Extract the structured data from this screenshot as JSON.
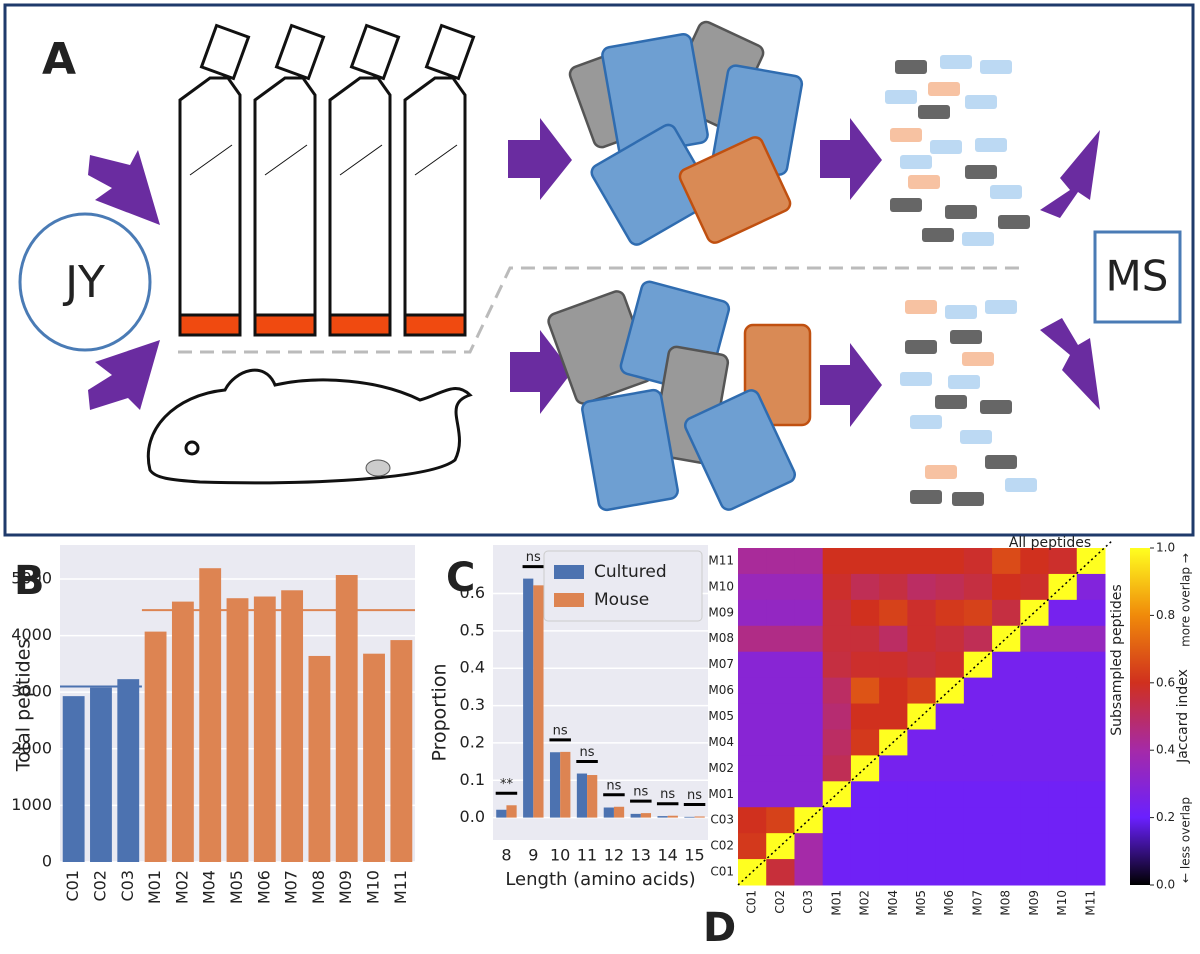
{
  "panel_labels": [
    "A",
    "B",
    "C",
    "D"
  ],
  "diagram": {
    "left_label": "JY",
    "right_label": "MS"
  },
  "chart_data": [
    {
      "type": "bar",
      "ylabel": "Total peptides",
      "categories": [
        "C01",
        "C02",
        "C03",
        "M01",
        "M02",
        "M04",
        "M05",
        "M06",
        "M07",
        "M08",
        "M09",
        "M10",
        "M11"
      ],
      "values": [
        2930,
        3080,
        3230,
        4070,
        4600,
        5190,
        4660,
        4690,
        4800,
        3640,
        5070,
        3680,
        3920
      ],
      "colors": [
        "#4c72b0",
        "#4c72b0",
        "#4c72b0",
        "#dd8452",
        "#dd8452",
        "#dd8452",
        "#dd8452",
        "#dd8452",
        "#dd8452",
        "#dd8452",
        "#dd8452",
        "#dd8452",
        "#dd8452"
      ],
      "mean_lines": [
        {
          "value": 3100,
          "color": "#4c72b0"
        },
        {
          "value": 4450,
          "color": "#dd8452"
        }
      ],
      "ylim": [
        0,
        5600
      ],
      "yticks": [
        0,
        1000,
        2000,
        3000,
        4000,
        5000
      ],
      "grid": true
    },
    {
      "type": "grouped_bar",
      "xlabel": "Length (amino acids)",
      "ylabel": "Proportion",
      "categories": [
        "8",
        "9",
        "10",
        "11",
        "12",
        "13",
        "14",
        "15"
      ],
      "series": [
        {
          "name": "Cultured",
          "color": "#4c72b0",
          "values": [
            0.021,
            0.64,
            0.175,
            0.118,
            0.027,
            0.01,
            0.004,
            0.002
          ]
        },
        {
          "name": "Mouse",
          "color": "#dd8452",
          "values": [
            0.033,
            0.622,
            0.176,
            0.114,
            0.029,
            0.012,
            0.005,
            0.003
          ]
        }
      ],
      "annotations": [
        "**",
        "ns",
        "ns",
        "ns",
        "ns",
        "ns",
        "ns",
        "ns"
      ],
      "ylim": [
        -0.06,
        0.73
      ],
      "yticks": [
        {
          "value": 0,
          "label": "0.0"
        },
        0.1,
        0.2,
        0.3,
        0.4,
        0.5,
        0.6
      ],
      "grid": true,
      "legend": "upper right"
    },
    {
      "type": "heatmap",
      "rows": [
        "M11",
        "M10",
        "M09",
        "M08",
        "M07",
        "M06",
        "M05",
        "M04",
        "M02",
        "M01",
        "C03",
        "C02",
        "C01"
      ],
      "columns": [
        "C01",
        "C02",
        "C03",
        "M01",
        "M02",
        "M04",
        "M05",
        "M06",
        "M07",
        "M08",
        "M09",
        "M10",
        "M11"
      ],
      "values": [
        [
          0.42,
          0.42,
          0.42,
          0.6,
          0.6,
          0.6,
          0.6,
          0.6,
          0.58,
          0.66,
          0.6,
          0.58,
          1
        ],
        [
          0.36,
          0.36,
          0.36,
          0.58,
          0.52,
          0.55,
          0.5,
          0.52,
          0.55,
          0.6,
          0.58,
          1,
          0.28
        ],
        [
          0.34,
          0.34,
          0.34,
          0.56,
          0.6,
          0.64,
          0.58,
          0.62,
          0.64,
          0.55,
          1,
          0.24,
          0.24
        ],
        [
          0.45,
          0.45,
          0.45,
          0.56,
          0.56,
          0.5,
          0.58,
          0.56,
          0.52,
          1,
          0.35,
          0.35,
          0.35
        ],
        [
          0.3,
          0.3,
          0.3,
          0.55,
          0.58,
          0.58,
          0.56,
          0.58,
          1,
          0.24,
          0.24,
          0.24,
          0.24
        ],
        [
          0.3,
          0.3,
          0.3,
          0.5,
          0.68,
          0.6,
          0.64,
          1,
          0.24,
          0.24,
          0.24,
          0.24,
          0.24
        ],
        [
          0.3,
          0.3,
          0.3,
          0.48,
          0.6,
          0.6,
          1,
          0.24,
          0.24,
          0.24,
          0.24,
          0.24,
          0.24
        ],
        [
          0.3,
          0.3,
          0.3,
          0.5,
          0.62,
          1,
          0.24,
          0.24,
          0.24,
          0.24,
          0.24,
          0.24,
          0.24
        ],
        [
          0.3,
          0.3,
          0.3,
          0.52,
          1,
          0.24,
          0.24,
          0.24,
          0.24,
          0.24,
          0.24,
          0.24,
          0.24
        ],
        [
          0.3,
          0.3,
          0.3,
          1,
          0.22,
          0.22,
          0.22,
          0.22,
          0.22,
          0.22,
          0.22,
          0.22,
          0.22
        ],
        [
          0.6,
          0.64,
          1,
          0.22,
          0.22,
          0.22,
          0.22,
          0.22,
          0.22,
          0.22,
          0.22,
          0.22,
          0.22
        ],
        [
          0.62,
          1,
          0.4,
          0.22,
          0.22,
          0.22,
          0.22,
          0.22,
          0.22,
          0.22,
          0.22,
          0.22,
          0.22
        ],
        [
          1,
          0.56,
          0.4,
          0.22,
          0.22,
          0.22,
          0.22,
          0.22,
          0.22,
          0.22,
          0.22,
          0.22,
          0.22
        ]
      ],
      "clim": [
        0,
        1
      ],
      "colormap": [
        "#000000",
        "#6a20ff",
        "#a52aa8",
        "#d0301e",
        "#f08a0a",
        "#ffff20"
      ],
      "colorbar_ticks": [
        {
          "value": 0,
          "label": "0.0"
        },
        0.2,
        0.4,
        0.6,
        0.8,
        {
          "value": 1,
          "label": "1.0"
        }
      ],
      "colorbar_label": "Jaccard index",
      "colorbar_top_note": "more overlap →",
      "colorbar_bottom_note": "← less overlap",
      "upper_note": "All peptides",
      "lower_note": "Subsampled peptides"
    }
  ]
}
